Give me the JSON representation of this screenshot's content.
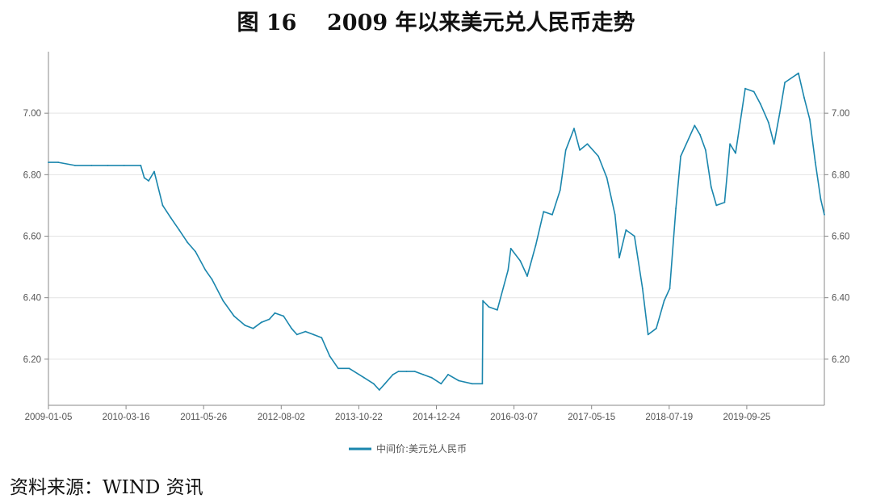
{
  "title": "图 16    2009 年以来美元兑人民币走势",
  "source": "资料来源：WIND 资讯",
  "chart_data": {
    "type": "line",
    "title": "图 16    2009 年以来美元兑人民币走势",
    "xlabel": "",
    "ylabel": "",
    "ylim": [
      6.05,
      7.2
    ],
    "y_ticks": [
      "6.20",
      "6.40",
      "6.60",
      "6.80",
      "7.00"
    ],
    "y_tick_values": [
      6.2,
      6.4,
      6.6,
      6.8,
      7.0
    ],
    "x_ticks": [
      "2009-01-05",
      "2010-03-16",
      "2011-05-26",
      "2012-08-02",
      "2013-10-22",
      "2014-12-24",
      "2016-03-07",
      "2017-05-15",
      "2018-07-19",
      "2019-09-25"
    ],
    "x_tick_positions": [
      0,
      0.1,
      0.2,
      0.3,
      0.4,
      0.5,
      0.6,
      0.7,
      0.8,
      0.9
    ],
    "grid": "horizontal",
    "dual_y_axis": true,
    "legend_position": "bottom",
    "series": [
      {
        "name": "中间价:美元兑人民币",
        "color": "#1a86ad",
        "x": [
          "2009-01-05",
          "2009-03-01",
          "2009-06-01",
          "2009-09-01",
          "2009-12-01",
          "2010-03-01",
          "2010-06-01",
          "2010-06-21",
          "2010-07-15",
          "2010-08-15",
          "2010-10-01",
          "2010-11-15",
          "2011-01-01",
          "2011-02-15",
          "2011-04-01",
          "2011-05-26",
          "2011-07-01",
          "2011-09-01",
          "2011-11-01",
          "2012-01-01",
          "2012-02-15",
          "2012-04-01",
          "2012-05-15",
          "2012-06-15",
          "2012-08-02",
          "2012-09-15",
          "2012-10-15",
          "2012-12-01",
          "2013-01-15",
          "2013-03-01",
          "2013-04-15",
          "2013-06-01",
          "2013-08-01",
          "2013-10-22",
          "2013-12-15",
          "2014-01-15",
          "2014-02-15",
          "2014-04-01",
          "2014-05-01",
          "2014-06-15",
          "2014-08-01",
          "2014-09-15",
          "2014-11-01",
          "2014-12-24",
          "2015-02-01",
          "2015-04-01",
          "2015-06-15",
          "2015-08-10",
          "2015-08-13",
          "2015-09-15",
          "2015-11-01",
          "2015-12-31",
          "2016-01-15",
          "2016-03-07",
          "2016-04-15",
          "2016-06-01",
          "2016-07-15",
          "2016-09-01",
          "2016-10-15",
          "2016-11-15",
          "2016-12-31",
          "2017-02-01",
          "2017-03-15",
          "2017-05-15",
          "2017-07-01",
          "2017-08-15",
          "2017-09-08",
          "2017-10-15",
          "2017-12-01",
          "2018-01-15",
          "2018-02-15",
          "2018-04-01",
          "2018-05-15",
          "2018-06-15",
          "2018-07-19",
          "2018-08-15",
          "2018-10-31",
          "2018-11-30",
          "2018-12-31",
          "2019-01-31",
          "2019-03-01",
          "2019-04-15",
          "2019-05-15",
          "2019-06-15",
          "2019-08-08",
          "2019-09-25",
          "2019-10-31",
          "2019-12-15",
          "2020-01-15",
          "2020-02-15",
          "2020-03-15",
          "2020-05-29",
          "2020-06-30",
          "2020-07-31",
          "2020-08-31",
          "2020-09-30",
          "2020-10-20"
        ],
        "values": [
          6.84,
          6.84,
          6.83,
          6.83,
          6.83,
          6.83,
          6.83,
          6.79,
          6.78,
          6.81,
          6.7,
          6.66,
          6.62,
          6.58,
          6.55,
          6.49,
          6.46,
          6.39,
          6.34,
          6.31,
          6.3,
          6.32,
          6.33,
          6.35,
          6.34,
          6.3,
          6.28,
          6.29,
          6.28,
          6.27,
          6.21,
          6.17,
          6.17,
          6.14,
          6.12,
          6.1,
          6.12,
          6.15,
          6.16,
          6.16,
          6.16,
          6.15,
          6.14,
          6.12,
          6.15,
          6.13,
          6.12,
          6.12,
          6.39,
          6.37,
          6.36,
          6.49,
          6.56,
          6.52,
          6.47,
          6.57,
          6.68,
          6.67,
          6.75,
          6.88,
          6.95,
          6.88,
          6.9,
          6.86,
          6.79,
          6.67,
          6.53,
          6.62,
          6.6,
          6.43,
          6.28,
          6.3,
          6.39,
          6.43,
          6.69,
          6.86,
          6.96,
          6.93,
          6.88,
          6.76,
          6.7,
          6.71,
          6.9,
          6.87,
          7.08,
          7.07,
          7.03,
          6.97,
          6.9,
          7.0,
          7.1,
          7.13,
          7.05,
          6.98,
          6.84,
          6.72,
          6.67
        ]
      }
    ]
  }
}
